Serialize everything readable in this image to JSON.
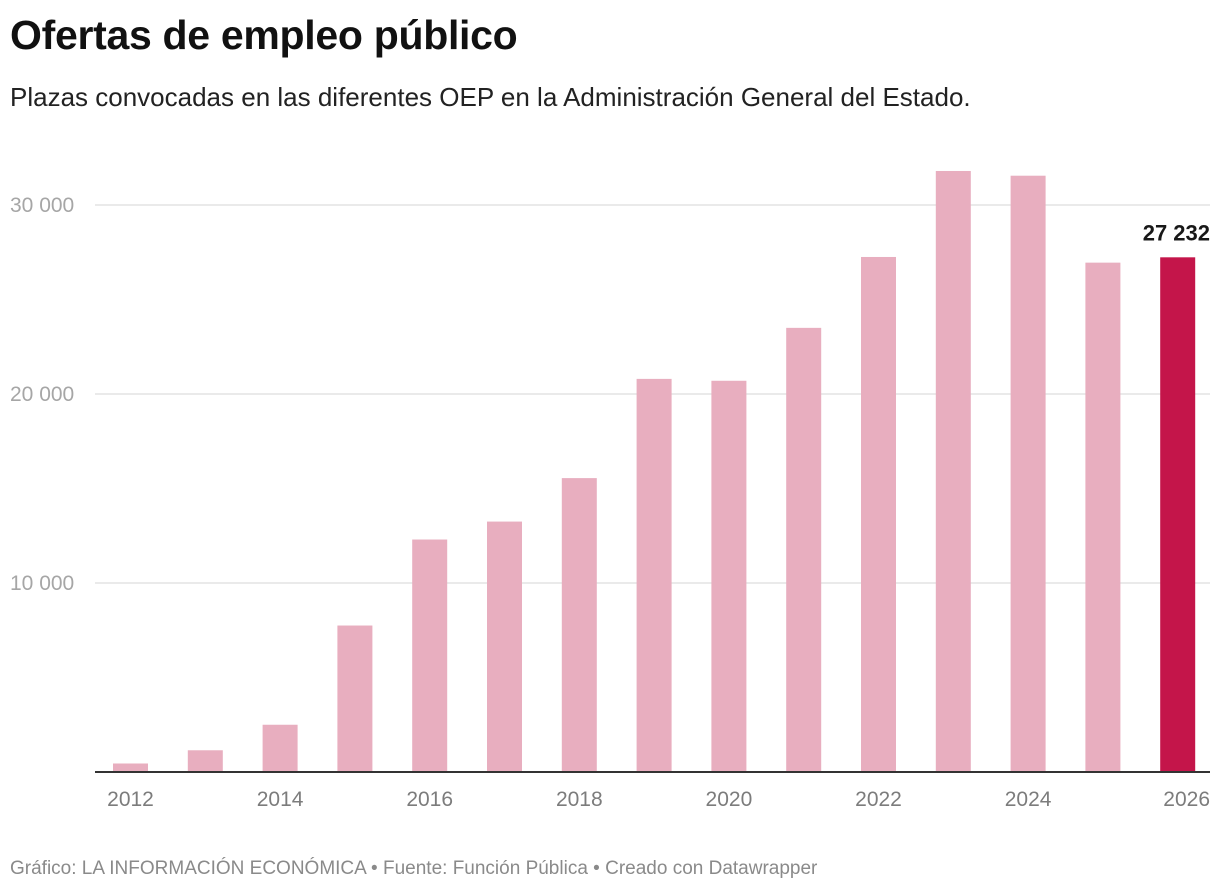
{
  "header": {
    "title": "Ofertas de empleo público",
    "subtitle": "Plazas convocadas en las diferentes OEP en la Administración General del Estado."
  },
  "footer": {
    "text": "Gráfico: LA INFORMACIÓN ECONÓMICA • Fuente: Función Pública • Creado con Datawrapper"
  },
  "colors": {
    "bar": "#e8aebf",
    "highlight": "#c4154a",
    "grid": "#e3e3e3",
    "axis": "#333333"
  },
  "chart_data": {
    "type": "bar",
    "title": "Ofertas de empleo público",
    "subtitle": "Plazas convocadas en las diferentes OEP en la Administración General del Estado.",
    "xlabel": "",
    "ylabel": "",
    "categories": [
      "2012",
      "2013",
      "2014",
      "2015",
      "2016",
      "2017",
      "2018",
      "2019",
      "2020",
      "2021",
      "2022",
      "2023",
      "2024",
      "2025",
      "2026"
    ],
    "values": [
      450,
      1150,
      2500,
      7750,
      12300,
      13250,
      15550,
      20800,
      20700,
      23500,
      27250,
      31800,
      31550,
      26950,
      27232
    ],
    "x_tick_labels": [
      "2012",
      "2014",
      "2016",
      "2018",
      "2020",
      "2022",
      "2024",
      "2026"
    ],
    "y_ticks": [
      10000,
      20000,
      30000
    ],
    "y_tick_labels": [
      "10 000",
      "20 000",
      "30 000"
    ],
    "ylim": [
      0,
      30000
    ],
    "grid": true,
    "legend": "none",
    "highlight": {
      "category": "2026",
      "label": "27 232"
    }
  }
}
